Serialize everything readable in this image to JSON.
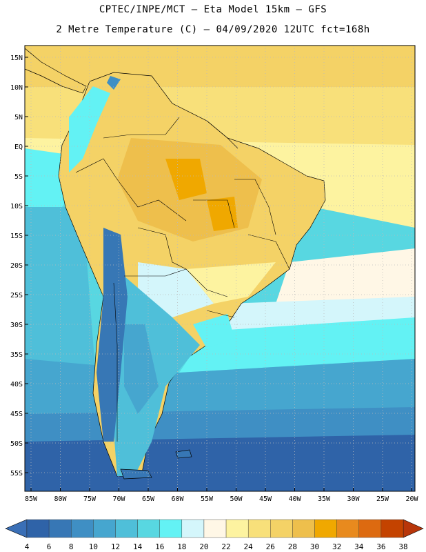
{
  "title": {
    "line1": "CPTEC/INPE/MCT –  Eta Model 15km – GFS",
    "line2": "2 Metre Temperature (C) – 04/09/2020 12UTC fct=168h"
  },
  "axes": {
    "lat_labels": [
      "15N",
      "10N",
      "5N",
      "EQ",
      "5S",
      "10S",
      "15S",
      "20S",
      "25S",
      "30S",
      "35S",
      "40S",
      "45S",
      "50S",
      "55S"
    ],
    "lon_labels": [
      "85W",
      "80W",
      "75W",
      "70W",
      "65W",
      "60W",
      "55W",
      "50W",
      "45W",
      "40W",
      "35W",
      "30W",
      "25W",
      "20W"
    ]
  },
  "legend": {
    "values": [
      "4",
      "6",
      "8",
      "10",
      "12",
      "14",
      "16",
      "18",
      "20",
      "22",
      "24",
      "26",
      "28",
      "30",
      "32",
      "34",
      "36",
      "38"
    ],
    "colors": [
      "#2f63a8",
      "#3777b5",
      "#3f8fc4",
      "#46a6cf",
      "#4fbfd9",
      "#58d7e1",
      "#63f2f4",
      "#d4f6fb",
      "#fff7e6",
      "#fdf3a0",
      "#f8e07a",
      "#f4d266",
      "#eebf4c",
      "#f0a800",
      "#e88a1e",
      "#dd6a10",
      "#c44300"
    ],
    "end_colors": {
      "low": "#3a6fb6",
      "high": "#b8360a"
    }
  },
  "map_colors": {
    "ocean_deep": "#2f63a8",
    "ocean_mid": "#3f8fc4",
    "ocean_light": "#58d7e1",
    "ocean_cyan": "#63f2f4",
    "warm_pale": "#fff7e6",
    "warm_yellow": "#f8e07a",
    "warm_orange": "#eebf4c",
    "hot": "#f0a800",
    "andes": "#3777b5"
  }
}
